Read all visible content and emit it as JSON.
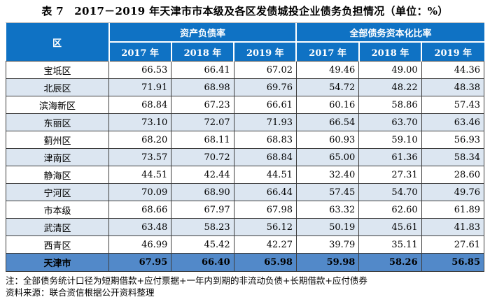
{
  "title": "表 7　2017－2019 年天津市市本级及各区发债城投企业债务负担情况（单位：%）",
  "colors": {
    "header_blue": "#0f72c4",
    "stripe_blue": "#dce6f1",
    "total_blue": "#5289c9",
    "border_dark": "#3d3d3d"
  },
  "table": {
    "region_header": "区",
    "group_headers": [
      "资产负债率",
      "全部债务资本化比率"
    ],
    "year_headers": [
      "2017 年",
      "2018 年",
      "2019 年",
      "2017 年",
      "2018 年",
      "2019 年"
    ],
    "rows": [
      {
        "region": "宝坻区",
        "values": [
          "66.53",
          "66.41",
          "67.02",
          "49.46",
          "49.00",
          "44.36"
        ]
      },
      {
        "region": "北辰区",
        "values": [
          "71.91",
          "68.98",
          "69.76",
          "54.72",
          "48.22",
          "48.38"
        ]
      },
      {
        "region": "滨海新区",
        "values": [
          "68.84",
          "67.23",
          "66.61",
          "60.16",
          "58.86",
          "57.43"
        ]
      },
      {
        "region": "东丽区",
        "values": [
          "73.10",
          "72.07",
          "71.93",
          "66.54",
          "63.70",
          "63.46"
        ]
      },
      {
        "region": "蓟州区",
        "values": [
          "68.20",
          "68.11",
          "68.83",
          "60.93",
          "59.10",
          "56.93"
        ]
      },
      {
        "region": "津南区",
        "values": [
          "73.57",
          "70.72",
          "68.84",
          "65.00",
          "61.36",
          "58.34"
        ]
      },
      {
        "region": "静海区",
        "values": [
          "44.51",
          "42.44",
          "44.51",
          "32.40",
          "27.31",
          "28.60"
        ]
      },
      {
        "region": "宁河区",
        "values": [
          "70.09",
          "68.90",
          "66.44",
          "57.45",
          "54.70",
          "49.76"
        ]
      },
      {
        "region": "市本级",
        "values": [
          "68.66",
          "67.97",
          "67.98",
          "63.32",
          "62.60",
          "61.89"
        ]
      },
      {
        "region": "武清区",
        "values": [
          "63.48",
          "58.23",
          "56.12",
          "50.19",
          "45.61",
          "41.83"
        ]
      },
      {
        "region": "西青区",
        "values": [
          "46.99",
          "45.42",
          "42.27",
          "39.79",
          "35.11",
          "27.61"
        ]
      }
    ],
    "total_row": {
      "region": "天津市",
      "values": [
        "67.95",
        "66.40",
        "65.98",
        "59.98",
        "58.26",
        "56.85"
      ]
    }
  },
  "notes": {
    "note": "注：全部债务统计口径为短期借款+应付票据+一年内到期的非流动负债+长期借款+应付债券",
    "source": "资料来源：联合资信根据公开资料整理"
  }
}
